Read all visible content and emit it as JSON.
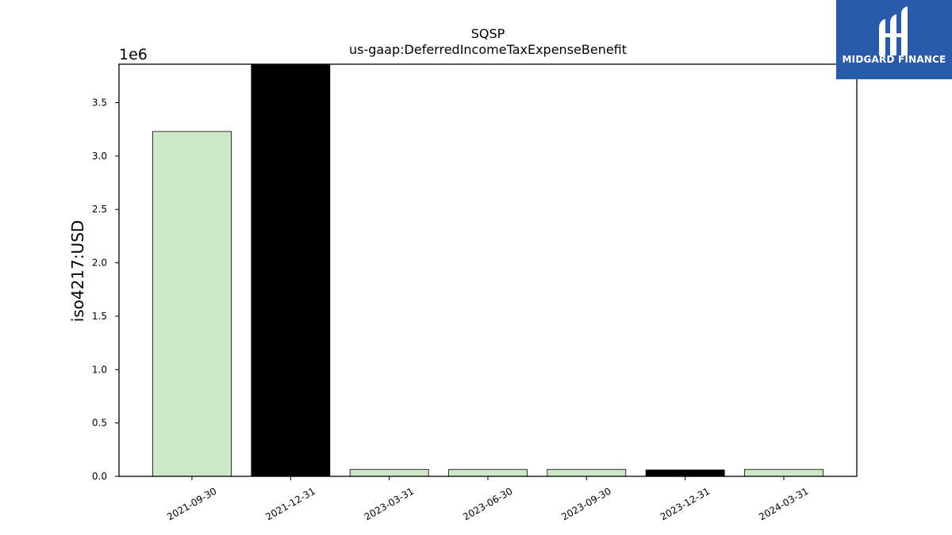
{
  "chart_data": {
    "type": "bar",
    "title": "SQSP",
    "subtitle": "us-gaap:DeferredIncomeTaxExpenseBenefit",
    "ylabel": "iso4217:USD",
    "xlabel": "",
    "y_scale_label": "1e6",
    "ylim": [
      0,
      3.86
    ],
    "yticks": [
      0.0,
      0.5,
      1.0,
      1.5,
      2.0,
      2.5,
      3.0,
      3.5
    ],
    "ytick_labels": [
      "0.0",
      "0.5",
      "1.0",
      "1.5",
      "2.0",
      "2.5",
      "3.0",
      "3.5"
    ],
    "categories": [
      "2021-09-30",
      "2021-12-31",
      "2023-03-31",
      "2023-06-30",
      "2023-09-30",
      "2023-12-31",
      "2024-03-31"
    ],
    "values": [
      3.23,
      3.86,
      0.065,
      0.065,
      0.065,
      0.06,
      0.065
    ],
    "bar_colors": [
      "#cce8c6",
      "#000000",
      "#cce8c6",
      "#cce8c6",
      "#cce8c6",
      "#000000",
      "#cce8c6"
    ],
    "grid": false
  },
  "logo": {
    "text": "MIDGARD FINANCE",
    "background": "#2a5aaa"
  }
}
